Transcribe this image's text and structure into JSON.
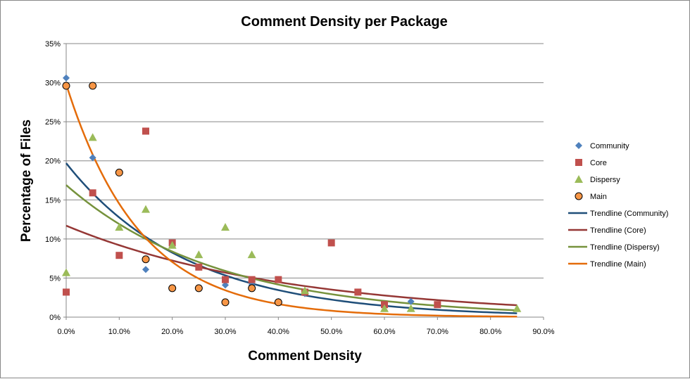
{
  "chart_data": {
    "type": "scatter",
    "title": "Comment Density per Package",
    "xlabel": "Comment Density",
    "ylabel": "Percentage of Files",
    "xlim": [
      0,
      0.9
    ],
    "ylim": [
      0,
      0.35
    ],
    "x_ticks": [
      "0.0%",
      "10.0%",
      "20.0%",
      "30.0%",
      "40.0%",
      "50.0%",
      "60.0%",
      "70.0%",
      "80.0%",
      "90.0%"
    ],
    "y_ticks": [
      "0%",
      "5%",
      "10%",
      "15%",
      "20%",
      "25%",
      "30%",
      "35%"
    ],
    "grid": "horizontal",
    "legend_position": "right",
    "series": [
      {
        "name": "Community",
        "marker": "diamond",
        "color": "#4F81BD",
        "points": [
          [
            0,
            0.306
          ],
          [
            0.05,
            0.204
          ],
          [
            0.15,
            0.061
          ],
          [
            0.25,
            0.064
          ],
          [
            0.3,
            0.041
          ],
          [
            0.35,
            0.041
          ],
          [
            0.4,
            0.02
          ],
          [
            0.45,
            0.03
          ],
          [
            0.65,
            0.02
          ]
        ]
      },
      {
        "name": "Core",
        "marker": "square",
        "color": "#C0504D",
        "points": [
          [
            0,
            0.032
          ],
          [
            0.05,
            0.159
          ],
          [
            0.1,
            0.079
          ],
          [
            0.15,
            0.238
          ],
          [
            0.2,
            0.095
          ],
          [
            0.25,
            0.064
          ],
          [
            0.3,
            0.048
          ],
          [
            0.35,
            0.048
          ],
          [
            0.4,
            0.048
          ],
          [
            0.45,
            0.032
          ],
          [
            0.5,
            0.095
          ],
          [
            0.55,
            0.032
          ],
          [
            0.6,
            0.016
          ],
          [
            0.7,
            0.016
          ]
        ]
      },
      {
        "name": "Dispersy",
        "marker": "triangle",
        "color": "#9BBB59",
        "points": [
          [
            0,
            0.057
          ],
          [
            0.05,
            0.23
          ],
          [
            0.1,
            0.115
          ],
          [
            0.15,
            0.138
          ],
          [
            0.2,
            0.092
          ],
          [
            0.25,
            0.08
          ],
          [
            0.3,
            0.115
          ],
          [
            0.35,
            0.08
          ],
          [
            0.45,
            0.034
          ],
          [
            0.6,
            0.011
          ],
          [
            0.65,
            0.011
          ],
          [
            0.85,
            0.011
          ]
        ]
      },
      {
        "name": "Main",
        "marker": "circle",
        "color": "#F79646",
        "points": [
          [
            0,
            0.296
          ],
          [
            0.05,
            0.296
          ],
          [
            0.1,
            0.185
          ],
          [
            0.15,
            0.074
          ],
          [
            0.2,
            0.037
          ],
          [
            0.25,
            0.037
          ],
          [
            0.3,
            0.019
          ],
          [
            0.35,
            0.037
          ],
          [
            0.4,
            0.019
          ]
        ]
      }
    ],
    "trendlines": [
      {
        "name": "Trendline (Community)",
        "color": "#1F4E79",
        "type": "exponential",
        "a": 0.197,
        "b": -4.35,
        "x_range": [
          0,
          0.85
        ]
      },
      {
        "name": "Trendline (Core)",
        "color": "#953735",
        "type": "exponential",
        "a": 0.117,
        "b": -2.4,
        "x_range": [
          0,
          0.85
        ]
      },
      {
        "name": "Trendline (Dispersy)",
        "color": "#76923C",
        "type": "exponential",
        "a": 0.169,
        "b": -3.5,
        "x_range": [
          0,
          0.85
        ]
      },
      {
        "name": "Trendline (Main)",
        "color": "#E46C0A",
        "type": "exponential",
        "a": 0.298,
        "b": -7.2,
        "x_range": [
          0,
          0.85
        ]
      }
    ]
  }
}
